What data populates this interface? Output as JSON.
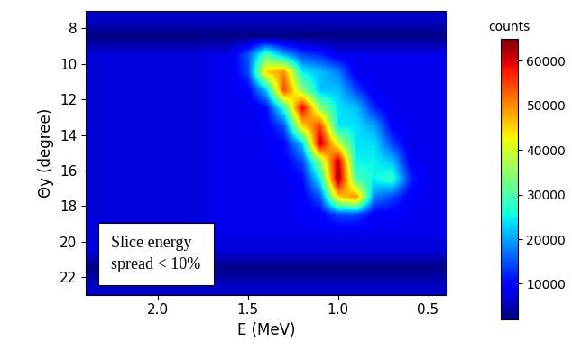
{
  "chart_data": {
    "type": "heatmap",
    "x_label": "E (MeV)",
    "y_label": "Θy (degree)",
    "xlim": [
      2.4,
      0.4
    ],
    "xticks": [
      2.0,
      1.5,
      1.0,
      0.5
    ],
    "ylim": [
      23,
      7
    ],
    "yticks": [
      8,
      10,
      12,
      14,
      16,
      18,
      20,
      22
    ],
    "annotation": "Slice energy\nspread < 10%",
    "x": [
      2.4,
      2.3,
      2.2,
      2.1,
      2.0,
      1.9,
      1.8,
      1.7,
      1.6,
      1.5,
      1.4,
      1.3,
      1.2,
      1.1,
      1.0,
      0.9,
      0.8,
      0.7,
      0.6,
      0.5,
      0.4
    ],
    "y": [
      7.5,
      8.5,
      9.5,
      10.5,
      11.5,
      12.5,
      13.5,
      14.5,
      15.5,
      16.5,
      17.5,
      18.5,
      19.5,
      20.5,
      21.5,
      22.5
    ],
    "cells": [
      [
        6000,
        6000,
        6000,
        6000,
        6000,
        6000,
        6000,
        6000,
        6000,
        6000,
        6000,
        6000,
        6000,
        6000,
        6000,
        6000,
        6000,
        6000,
        6000,
        6000,
        6000
      ],
      [
        2500,
        2500,
        2500,
        2500,
        2500,
        2500,
        2500,
        2500,
        2500,
        2500,
        2500,
        2500,
        2500,
        2500,
        2500,
        2500,
        2500,
        2500,
        2500,
        2500,
        2500
      ],
      [
        7000,
        7000,
        7000,
        7000,
        7000,
        7000,
        7000,
        8000,
        8000,
        15000,
        30000,
        20000,
        14000,
        12000,
        8000,
        8000,
        8000,
        8000,
        8000,
        8000,
        8000
      ],
      [
        7000,
        7000,
        7000,
        7000,
        7000,
        7000,
        7000,
        8000,
        8000,
        14000,
        45000,
        50000,
        25000,
        22000,
        18000,
        8000,
        8000,
        8000,
        8000,
        8000,
        8000
      ],
      [
        7000,
        7000,
        7000,
        7000,
        7000,
        7000,
        7000,
        8000,
        8000,
        9000,
        22000,
        55000,
        35000,
        22000,
        22000,
        14000,
        8000,
        8000,
        8000,
        8000,
        8000
      ],
      [
        7000,
        7000,
        7000,
        7000,
        7000,
        7000,
        7000,
        8000,
        8000,
        8000,
        10000,
        28000,
        60000,
        35000,
        24000,
        22000,
        12000,
        8000,
        8000,
        8000,
        8000
      ],
      [
        7000,
        7000,
        7000,
        7000,
        7000,
        7000,
        7000,
        8000,
        8000,
        8000,
        9000,
        15000,
        45000,
        55000,
        24000,
        24000,
        20000,
        9000,
        8000,
        8000,
        8000
      ],
      [
        7000,
        7000,
        7000,
        7000,
        7000,
        7000,
        7000,
        8000,
        8000,
        8000,
        8000,
        10000,
        22000,
        62000,
        40000,
        24000,
        24000,
        14000,
        8000,
        8000,
        8000
      ],
      [
        7000,
        7000,
        7000,
        7000,
        7000,
        7000,
        7000,
        8000,
        8000,
        8000,
        8000,
        9000,
        14000,
        35000,
        62000,
        25000,
        25000,
        22000,
        9000,
        8000,
        8000
      ],
      [
        7000,
        7000,
        7000,
        7000,
        7000,
        7000,
        7000,
        8000,
        8000,
        8000,
        8000,
        8000,
        10000,
        25000,
        64000,
        30000,
        25000,
        28000,
        12000,
        8000,
        8000
      ],
      [
        7000,
        7000,
        7000,
        7000,
        7000,
        7000,
        7000,
        8000,
        8000,
        8000,
        8000,
        8000,
        9000,
        15000,
        45000,
        50000,
        18000,
        14000,
        9000,
        8000,
        8000
      ],
      [
        7000,
        7000,
        7000,
        7000,
        7000,
        7000,
        7000,
        8000,
        8000,
        8000,
        8000,
        8000,
        9000,
        9000,
        14000,
        14000,
        9000,
        9000,
        8000,
        8000,
        8000
      ],
      [
        7000,
        7000,
        7000,
        7000,
        7000,
        7000,
        7000,
        8000,
        8000,
        8000,
        8000,
        8000,
        8000,
        8000,
        8000,
        8000,
        8000,
        8000,
        8000,
        8000,
        8000
      ],
      [
        7000,
        7000,
        7000,
        7000,
        7000,
        7000,
        7000,
        7000,
        7000,
        7000,
        7000,
        7000,
        7000,
        7000,
        7000,
        7000,
        7000,
        7000,
        7000,
        7000,
        7000
      ],
      [
        2500,
        2500,
        2500,
        2500,
        2500,
        2500,
        2500,
        2500,
        2500,
        2500,
        2500,
        2500,
        2500,
        2500,
        2500,
        2500,
        2500,
        2500,
        2500,
        2500,
        2500
      ],
      [
        6000,
        6000,
        6000,
        6000,
        6000,
        6000,
        6000,
        6000,
        6000,
        6000,
        6000,
        6000,
        6000,
        6000,
        6000,
        6000,
        6000,
        6000,
        6000,
        6000,
        6000
      ]
    ],
    "colorbar_label": "counts",
    "colorbar_range": [
      2000,
      65000
    ],
    "colorbar_ticks": [
      10000,
      20000,
      30000,
      40000,
      50000,
      60000
    ]
  }
}
